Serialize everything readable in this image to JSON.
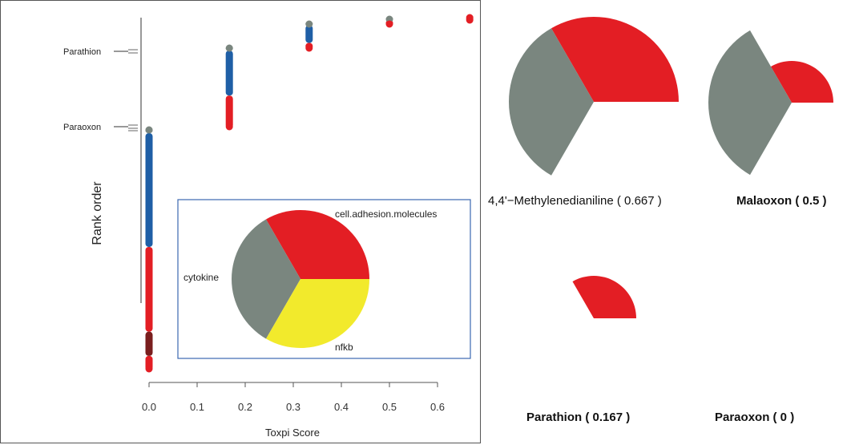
{
  "colors": {
    "red": "#e31e24",
    "gray": "#7a867f",
    "yellow": "#f2ea2c",
    "blue": "#1f5fa6",
    "darkred": "#7a1e1e",
    "legend_border": "#3b67b0"
  },
  "chart_data": [
    {
      "type": "scatter",
      "xlabel": "Toxpi Score",
      "ylabel": "Rank order",
      "xlim": [
        0,
        0.67
      ],
      "xticks": [
        "0.0",
        "0.1",
        "0.2",
        "0.3",
        "0.4",
        "0.5",
        "0.6"
      ],
      "xtick_values": [
        0,
        0.1,
        0.2,
        0.3,
        0.4,
        0.5,
        0.6
      ],
      "columns": [
        {
          "x": 0.0,
          "segments": [
            {
              "color": "gray",
              "from": 0.0,
              "to": 0.02
            },
            {
              "color": "blue",
              "from": 0.02,
              "to": 0.49
            },
            {
              "color": "red",
              "from": 0.49,
              "to": 0.84
            },
            {
              "color": "darkred",
              "from": 0.84,
              "to": 0.94
            },
            {
              "color": "red",
              "from": 0.94,
              "to": 1.0
            }
          ]
        },
        {
          "x": 0.167,
          "segments": [
            {
              "color": "gray",
              "from": 0.0,
              "to": 0.05
            },
            {
              "color": "blue",
              "from": 0.05,
              "to": 0.6
            },
            {
              "color": "red",
              "from": 0.6,
              "to": 1.0
            }
          ]
        },
        {
          "x": 0.333,
          "segments": [
            {
              "color": "gray",
              "from": 0.0,
              "to": 0.1
            },
            {
              "color": "blue",
              "from": 0.1,
              "to": 0.75
            },
            {
              "color": "red",
              "from": 0.75,
              "to": 1.0
            }
          ]
        },
        {
          "x": 0.5,
          "segments": [
            {
              "color": "gray",
              "from": 0.0,
              "to": 0.3
            },
            {
              "color": "red",
              "from": 0.3,
              "to": 1.0
            }
          ]
        },
        {
          "x": 0.667,
          "segments": [
            {
              "color": "red",
              "from": 0.0,
              "to": 1.0
            }
          ]
        }
      ],
      "annotations": [
        "Parathion",
        "Paraoxon"
      ]
    },
    {
      "type": "pie",
      "title": "",
      "slices": [
        {
          "label": "cell.adhesion.molecules",
          "start_deg": 0,
          "end_deg": 120,
          "radius_frac": 1.0,
          "color": "red"
        },
        {
          "label": "cytokine",
          "start_deg": 120,
          "end_deg": 240,
          "radius_frac": 1.0,
          "color": "gray"
        },
        {
          "label": "nfkb",
          "start_deg": 240,
          "end_deg": 360,
          "radius_frac": 1.0,
          "color": "yellow"
        }
      ]
    }
  ],
  "toxpi_profiles": [
    {
      "name": "4,4'-Methylenedianiline",
      "score": "0.667",
      "caption": "4,4'−Methylenedianiline  ( 0.667 )",
      "bold": false,
      "slices": [
        {
          "color": "red",
          "start_deg": 0,
          "end_deg": 120,
          "radius_frac": 1.0
        },
        {
          "color": "gray",
          "start_deg": 120,
          "end_deg": 240,
          "radius_frac": 1.0
        }
      ]
    },
    {
      "name": "Malaoxon",
      "score": "0.5",
      "caption": "Malaoxon  ( 0.5 )",
      "bold": true,
      "slices": [
        {
          "color": "red",
          "start_deg": 0,
          "end_deg": 120,
          "radius_frac": 0.5
        },
        {
          "color": "gray",
          "start_deg": 120,
          "end_deg": 240,
          "radius_frac": 1.0
        }
      ]
    },
    {
      "name": "Parathion",
      "score": "0.167",
      "caption": "Parathion  ( 0.167 )",
      "bold": true,
      "slices": [
        {
          "color": "red",
          "start_deg": 0,
          "end_deg": 120,
          "radius_frac": 0.5
        }
      ]
    },
    {
      "name": "Paraoxon",
      "score": "0",
      "caption": "Paraoxon  ( 0 )",
      "bold": true,
      "slices": []
    }
  ]
}
